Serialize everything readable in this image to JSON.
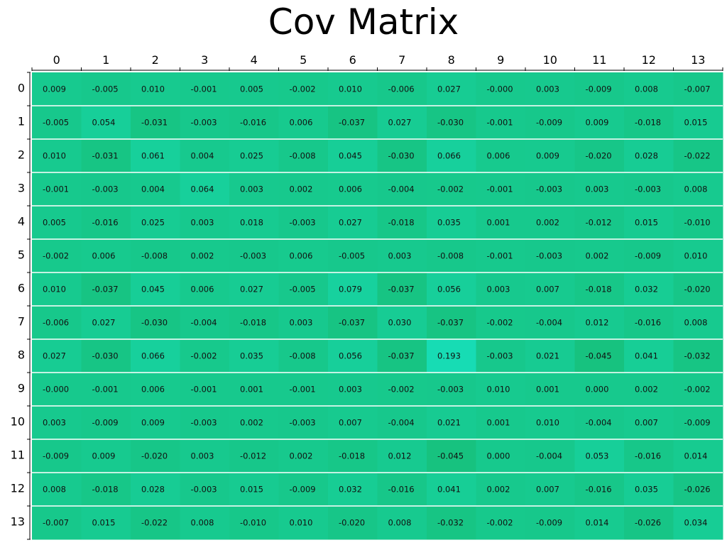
{
  "chart_data": {
    "type": "heatmap",
    "title": "Cov Matrix",
    "xlabel": "",
    "ylabel": "",
    "x_labels": [
      "0",
      "1",
      "2",
      "3",
      "4",
      "5",
      "6",
      "7",
      "8",
      "9",
      "10",
      "11",
      "12",
      "13"
    ],
    "y_labels": [
      "0",
      "1",
      "2",
      "3",
      "4",
      "5",
      "6",
      "7",
      "8",
      "9",
      "10",
      "11",
      "12",
      "13"
    ],
    "values": [
      [
        "0.009",
        "-0.005",
        "0.010",
        "-0.001",
        "0.005",
        "-0.002",
        "0.010",
        "-0.006",
        "0.027",
        "-0.000",
        "0.003",
        "-0.009",
        "0.008",
        "-0.007"
      ],
      [
        "-0.005",
        "0.054",
        "-0.031",
        "-0.003",
        "-0.016",
        "0.006",
        "-0.037",
        "0.027",
        "-0.030",
        "-0.001",
        "-0.009",
        "0.009",
        "-0.018",
        "0.015"
      ],
      [
        "0.010",
        "-0.031",
        "0.061",
        "0.004",
        "0.025",
        "-0.008",
        "0.045",
        "-0.030",
        "0.066",
        "0.006",
        "0.009",
        "-0.020",
        "0.028",
        "-0.022"
      ],
      [
        "-0.001",
        "-0.003",
        "0.004",
        "0.064",
        "0.003",
        "0.002",
        "0.006",
        "-0.004",
        "-0.002",
        "-0.001",
        "-0.003",
        "0.003",
        "-0.003",
        "0.008"
      ],
      [
        "0.005",
        "-0.016",
        "0.025",
        "0.003",
        "0.018",
        "-0.003",
        "0.027",
        "-0.018",
        "0.035",
        "0.001",
        "0.002",
        "-0.012",
        "0.015",
        "-0.010"
      ],
      [
        "-0.002",
        "0.006",
        "-0.008",
        "0.002",
        "-0.003",
        "0.006",
        "-0.005",
        "0.003",
        "-0.008",
        "-0.001",
        "-0.003",
        "0.002",
        "-0.009",
        "0.010"
      ],
      [
        "0.010",
        "-0.037",
        "0.045",
        "0.006",
        "0.027",
        "-0.005",
        "0.079",
        "-0.037",
        "0.056",
        "0.003",
        "0.007",
        "-0.018",
        "0.032",
        "-0.020"
      ],
      [
        "-0.006",
        "0.027",
        "-0.030",
        "-0.004",
        "-0.018",
        "0.003",
        "-0.037",
        "0.030",
        "-0.037",
        "-0.002",
        "-0.004",
        "0.012",
        "-0.016",
        "0.008"
      ],
      [
        "0.027",
        "-0.030",
        "0.066",
        "-0.002",
        "0.035",
        "-0.008",
        "0.056",
        "-0.037",
        "0.193",
        "-0.003",
        "0.021",
        "-0.045",
        "0.041",
        "-0.032"
      ],
      [
        "-0.000",
        "-0.001",
        "0.006",
        "-0.001",
        "0.001",
        "-0.001",
        "0.003",
        "-0.002",
        "-0.003",
        "0.010",
        "0.001",
        "0.000",
        "0.002",
        "-0.002"
      ],
      [
        "0.003",
        "-0.009",
        "0.009",
        "-0.003",
        "0.002",
        "-0.003",
        "0.007",
        "-0.004",
        "0.021",
        "0.001",
        "0.010",
        "-0.004",
        "0.007",
        "-0.009"
      ],
      [
        "-0.009",
        "0.009",
        "-0.020",
        "0.003",
        "-0.012",
        "0.002",
        "-0.018",
        "0.012",
        "-0.045",
        "0.000",
        "-0.004",
        "0.053",
        "-0.016",
        "0.014"
      ],
      [
        "0.008",
        "-0.018",
        "0.028",
        "-0.003",
        "0.015",
        "-0.009",
        "0.032",
        "-0.016",
        "0.041",
        "0.002",
        "0.007",
        "-0.016",
        "0.035",
        "-0.026"
      ],
      [
        "-0.007",
        "0.015",
        "-0.022",
        "0.008",
        "-0.010",
        "0.010",
        "-0.020",
        "0.008",
        "-0.032",
        "-0.002",
        "-0.009",
        "0.014",
        "-0.026",
        "0.034"
      ]
    ],
    "color_low": "#17c27f",
    "color_high": "#17dcb4",
    "grid": false
  }
}
